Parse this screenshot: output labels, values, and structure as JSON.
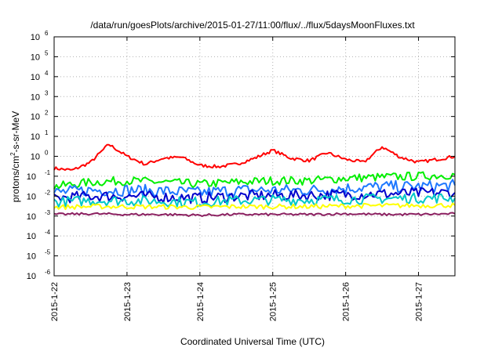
{
  "chart_data": {
    "type": "line",
    "title": "/data/run/goesPlots/archive/2015-01-27/11:00/flux/../flux/5daysMoonFluxes.txt",
    "xlabel": "Coordinated Universal Time (UTC)",
    "ylabel": {
      "base": "protons/cm",
      "sup": "2",
      "rest": "-s-sr-MeV"
    },
    "x_range": [
      "2015-01-22T00:00",
      "2015-01-27T12:00"
    ],
    "x_ticks": [
      "2015-1-22",
      "2015-1-23",
      "2015-1-24",
      "2015-1-25",
      "2015-1-26",
      "2015-1-27"
    ],
    "y_scale": "log",
    "ylim": [
      1e-06,
      1000000.0
    ],
    "y_ticks": [
      {
        "base": "10",
        "exp": "6"
      },
      {
        "base": "10",
        "exp": "5"
      },
      {
        "base": "10",
        "exp": "4"
      },
      {
        "base": "10",
        "exp": "3"
      },
      {
        "base": "10",
        "exp": "2"
      },
      {
        "base": "10",
        "exp": "1"
      },
      {
        "base": "10",
        "exp": "0"
      },
      {
        "base": "10",
        "exp": "-1"
      },
      {
        "base": "10",
        "exp": "-2"
      },
      {
        "base": "10",
        "exp": "-3"
      },
      {
        "base": "10",
        "exp": "-4"
      },
      {
        "base": "10",
        "exp": "-5"
      },
      {
        "base": "10",
        "exp": "-6"
      }
    ],
    "grid": true,
    "legend": "none",
    "series": [
      {
        "color": "#ff0000",
        "x": [
          "2015-01-22T00:00",
          "2015-01-22T06:00",
          "2015-01-22T12:00",
          "2015-01-22T18:00",
          "2015-01-23T00:00",
          "2015-01-23T06:00",
          "2015-01-23T12:00",
          "2015-01-23T18:00",
          "2015-01-24T00:00",
          "2015-01-24T06:00",
          "2015-01-24T12:00",
          "2015-01-24T18:00",
          "2015-01-25T00:00",
          "2015-01-25T06:00",
          "2015-01-25T12:00",
          "2015-01-25T18:00",
          "2015-01-26T00:00",
          "2015-01-26T06:00",
          "2015-01-26T12:00",
          "2015-01-26T18:00",
          "2015-01-27T00:00",
          "2015-01-27T06:00",
          "2015-01-27T12:00"
        ],
        "values": [
          0.25,
          0.2,
          0.5,
          4.0,
          1.0,
          0.4,
          0.8,
          0.9,
          0.35,
          0.3,
          0.4,
          0.8,
          2.0,
          0.8,
          0.6,
          1.5,
          0.7,
          0.5,
          3.0,
          0.9,
          0.5,
          0.7,
          1.0
        ]
      },
      {
        "color": "#00ee00",
        "x": [
          "2015-01-22T00:00",
          "2015-01-22T12:00",
          "2015-01-23T00:00",
          "2015-01-23T12:00",
          "2015-01-24T00:00",
          "2015-01-24T12:00",
          "2015-01-25T00:00",
          "2015-01-25T12:00",
          "2015-01-26T00:00",
          "2015-01-26T12:00",
          "2015-01-27T00:00",
          "2015-01-27T12:00"
        ],
        "values": [
          0.03,
          0.05,
          0.06,
          0.05,
          0.04,
          0.05,
          0.06,
          0.06,
          0.08,
          0.09,
          0.1,
          0.12
        ]
      },
      {
        "color": "#1e78ff",
        "x": [
          "2015-01-22T00:00",
          "2015-01-22T12:00",
          "2015-01-23T00:00",
          "2015-01-23T12:00",
          "2015-01-24T00:00",
          "2015-01-24T12:00",
          "2015-01-25T00:00",
          "2015-01-25T12:00",
          "2015-01-26T00:00",
          "2015-01-26T12:00",
          "2015-01-27T00:00",
          "2015-01-27T12:00"
        ],
        "values": [
          0.015,
          0.02,
          0.02,
          0.018,
          0.015,
          0.02,
          0.02,
          0.02,
          0.025,
          0.03,
          0.03,
          0.035
        ]
      },
      {
        "color": "#0000cc",
        "x": [
          "2015-01-22T00:00",
          "2015-01-22T12:00",
          "2015-01-23T00:00",
          "2015-01-23T12:00",
          "2015-01-24T00:00",
          "2015-01-24T12:00",
          "2015-01-25T00:00",
          "2015-01-25T12:00",
          "2015-01-26T00:00",
          "2015-01-26T12:00",
          "2015-01-27T00:00",
          "2015-01-27T12:00"
        ],
        "values": [
          0.008,
          0.01,
          0.01,
          0.009,
          0.008,
          0.01,
          0.011,
          0.011,
          0.012,
          0.013,
          0.014,
          0.015
        ]
      },
      {
        "color": "#00c8c8",
        "x": [
          "2015-01-22T00:00",
          "2015-01-22T12:00",
          "2015-01-23T00:00",
          "2015-01-23T12:00",
          "2015-01-24T00:00",
          "2015-01-24T12:00",
          "2015-01-25T00:00",
          "2015-01-25T12:00",
          "2015-01-26T00:00",
          "2015-01-26T12:00",
          "2015-01-27T00:00",
          "2015-01-27T12:00"
        ],
        "values": [
          0.005,
          0.006,
          0.006,
          0.0055,
          0.005,
          0.006,
          0.0065,
          0.0065,
          0.007,
          0.0075,
          0.008,
          0.008
        ]
      },
      {
        "color": "#ffff00",
        "x": [
          "2015-01-22T00:00",
          "2015-01-22T12:00",
          "2015-01-23T00:00",
          "2015-01-23T12:00",
          "2015-01-24T00:00",
          "2015-01-24T12:00",
          "2015-01-25T00:00",
          "2015-01-25T12:00",
          "2015-01-26T00:00",
          "2015-01-26T12:00",
          "2015-01-27T00:00",
          "2015-01-27T12:00"
        ],
        "values": [
          0.0028,
          0.003,
          0.003,
          0.0029,
          0.0028,
          0.003,
          0.003,
          0.003,
          0.0032,
          0.0033,
          0.0034,
          0.0035
        ]
      },
      {
        "color": "#8b2060",
        "x": [
          "2015-01-22T00:00",
          "2015-01-22T12:00",
          "2015-01-23T00:00",
          "2015-01-23T12:00",
          "2015-01-24T00:00",
          "2015-01-24T12:00",
          "2015-01-25T00:00",
          "2015-01-25T12:00",
          "2015-01-26T00:00",
          "2015-01-26T12:00",
          "2015-01-27T00:00",
          "2015-01-27T12:00"
        ],
        "values": [
          0.0012,
          0.0013,
          0.0012,
          0.0012,
          0.0011,
          0.0012,
          0.0012,
          0.0012,
          0.0013,
          0.0012,
          0.0012,
          0.0013
        ]
      }
    ]
  }
}
